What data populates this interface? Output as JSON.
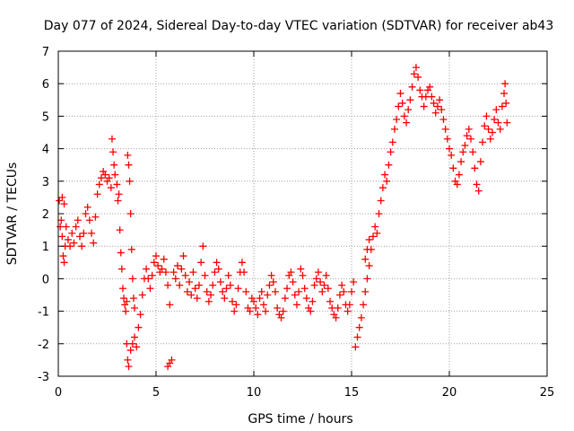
{
  "chart_data": {
    "type": "scatter",
    "title": "Day 077 of 2024, Sidereal Day-to-day VTEC variation (SDTVAR) for receiver ab43",
    "xlabel": "GPS time / hours",
    "ylabel": "SDTVAR / TECUs",
    "xlim": [
      0,
      25
    ],
    "ylim": [
      -3,
      7
    ],
    "xticks": [
      0,
      5,
      10,
      15,
      20,
      25
    ],
    "yticks": [
      -3,
      -2,
      -1,
      0,
      1,
      2,
      3,
      4,
      5,
      6,
      7
    ],
    "xtick_labels": [
      "0",
      "5",
      "10",
      "15",
      "20",
      "25"
    ],
    "ytick_labels": [
      "-3",
      "-2",
      "-1",
      "0",
      "1",
      "2",
      "3",
      "4",
      "5",
      "6",
      "7"
    ],
    "grid": true,
    "marker": "+",
    "series": [
      {
        "name": "SDTVAR",
        "color": "#ff0000",
        "points": [
          [
            0.05,
            2.4
          ],
          [
            0.1,
            1.6
          ],
          [
            0.15,
            1.8
          ],
          [
            0.2,
            1.3
          ],
          [
            0.25,
            0.7
          ],
          [
            0.3,
            0.5
          ],
          [
            0.35,
            1.0
          ],
          [
            0.4,
            1.6
          ],
          [
            0.3,
            2.3
          ],
          [
            0.2,
            2.5
          ],
          [
            0.5,
            1.2
          ],
          [
            0.6,
            1.0
          ],
          [
            0.7,
            1.4
          ],
          [
            0.8,
            1.1
          ],
          [
            0.9,
            1.6
          ],
          [
            1.0,
            1.8
          ],
          [
            1.1,
            1.3
          ],
          [
            1.2,
            1.0
          ],
          [
            1.3,
            1.4
          ],
          [
            1.4,
            2.0
          ],
          [
            1.5,
            2.2
          ],
          [
            1.6,
            1.8
          ],
          [
            1.7,
            1.4
          ],
          [
            1.8,
            1.1
          ],
          [
            1.9,
            1.9
          ],
          [
            2.0,
            2.6
          ],
          [
            2.1,
            2.9
          ],
          [
            2.2,
            3.1
          ],
          [
            2.3,
            3.3
          ],
          [
            2.4,
            3.2
          ],
          [
            2.5,
            3.0
          ],
          [
            2.6,
            3.1
          ],
          [
            2.7,
            2.8
          ],
          [
            2.75,
            4.3
          ],
          [
            2.8,
            3.9
          ],
          [
            2.85,
            3.5
          ],
          [
            2.9,
            3.2
          ],
          [
            3.0,
            2.9
          ],
          [
            3.05,
            2.4
          ],
          [
            3.1,
            2.6
          ],
          [
            3.15,
            1.5
          ],
          [
            3.2,
            0.8
          ],
          [
            3.25,
            0.3
          ],
          [
            3.3,
            -0.3
          ],
          [
            3.35,
            -0.6
          ],
          [
            3.4,
            -0.8
          ],
          [
            3.45,
            -1.0
          ],
          [
            3.5,
            -0.7
          ],
          [
            3.55,
            3.8
          ],
          [
            3.6,
            3.5
          ],
          [
            3.65,
            3.0
          ],
          [
            3.7,
            2.0
          ],
          [
            3.75,
            0.9
          ],
          [
            3.8,
            0.0
          ],
          [
            3.85,
            -0.6
          ],
          [
            3.9,
            -0.9
          ],
          [
            3.5,
            -2.0
          ],
          [
            3.55,
            -2.5
          ],
          [
            3.6,
            -2.7
          ],
          [
            3.7,
            -2.2
          ],
          [
            3.8,
            -2.0
          ],
          [
            3.9,
            -1.8
          ],
          [
            4.0,
            -2.1
          ],
          [
            4.1,
            -1.5
          ],
          [
            4.2,
            -1.1
          ],
          [
            4.3,
            -0.5
          ],
          [
            4.4,
            0.0
          ],
          [
            4.5,
            0.3
          ],
          [
            4.6,
            0.0
          ],
          [
            4.7,
            -0.3
          ],
          [
            4.8,
            0.1
          ],
          [
            4.9,
            0.5
          ],
          [
            5.0,
            0.7
          ],
          [
            5.1,
            0.4
          ],
          [
            5.2,
            0.2
          ],
          [
            5.3,
            0.3
          ],
          [
            5.4,
            0.6
          ],
          [
            5.5,
            0.2
          ],
          [
            5.6,
            -0.2
          ],
          [
            5.7,
            -0.8
          ],
          [
            5.6,
            -2.7
          ],
          [
            5.7,
            -2.6
          ],
          [
            5.8,
            -2.5
          ],
          [
            5.9,
            0.2
          ],
          [
            6.0,
            0.0
          ],
          [
            6.1,
            0.4
          ],
          [
            6.2,
            -0.2
          ],
          [
            6.3,
            0.3
          ],
          [
            6.4,
            0.7
          ],
          [
            6.5,
            0.1
          ],
          [
            6.6,
            -0.4
          ],
          [
            6.7,
            -0.1
          ],
          [
            6.8,
            -0.5
          ],
          [
            6.9,
            0.2
          ],
          [
            7.0,
            -0.3
          ],
          [
            7.1,
            -0.6
          ],
          [
            7.2,
            -0.2
          ],
          [
            7.3,
            0.5
          ],
          [
            7.4,
            1.0
          ],
          [
            7.5,
            0.1
          ],
          [
            7.6,
            -0.4
          ],
          [
            7.7,
            -0.7
          ],
          [
            7.8,
            -0.5
          ],
          [
            7.9,
            -0.2
          ],
          [
            8.0,
            0.2
          ],
          [
            8.1,
            0.5
          ],
          [
            8.2,
            0.3
          ],
          [
            8.3,
            -0.1
          ],
          [
            8.4,
            -0.4
          ],
          [
            8.5,
            -0.6
          ],
          [
            8.6,
            -0.3
          ],
          [
            8.7,
            0.1
          ],
          [
            8.8,
            -0.2
          ],
          [
            8.9,
            -0.7
          ],
          [
            9.0,
            -1.0
          ],
          [
            9.1,
            -0.8
          ],
          [
            9.2,
            -0.3
          ],
          [
            9.3,
            0.2
          ],
          [
            9.4,
            0.5
          ],
          [
            9.5,
            0.2
          ],
          [
            9.6,
            -0.4
          ],
          [
            9.7,
            -0.9
          ],
          [
            9.8,
            -1.0
          ],
          [
            9.9,
            -0.6
          ],
          [
            10.0,
            -0.7
          ],
          [
            10.1,
            -0.9
          ],
          [
            10.2,
            -1.1
          ],
          [
            10.3,
            -0.6
          ],
          [
            10.4,
            -0.4
          ],
          [
            10.5,
            -0.8
          ],
          [
            10.6,
            -1.0
          ],
          [
            10.7,
            -0.5
          ],
          [
            10.8,
            -0.2
          ],
          [
            10.9,
            0.1
          ],
          [
            11.0,
            -0.1
          ],
          [
            11.1,
            -0.4
          ],
          [
            11.2,
            -0.9
          ],
          [
            11.3,
            -1.1
          ],
          [
            11.4,
            -1.2
          ],
          [
            11.5,
            -1.0
          ],
          [
            11.6,
            -0.6
          ],
          [
            11.7,
            -0.3
          ],
          [
            11.8,
            0.1
          ],
          [
            11.9,
            0.2
          ],
          [
            12.0,
            -0.1
          ],
          [
            12.1,
            -0.5
          ],
          [
            12.2,
            -0.8
          ],
          [
            12.3,
            -0.4
          ],
          [
            12.4,
            0.3
          ],
          [
            12.5,
            0.1
          ],
          [
            12.6,
            -0.3
          ],
          [
            12.7,
            -0.6
          ],
          [
            12.8,
            -0.9
          ],
          [
            12.9,
            -1.0
          ],
          [
            13.0,
            -0.7
          ],
          [
            13.1,
            -0.2
          ],
          [
            13.2,
            0.0
          ],
          [
            13.3,
            0.2
          ],
          [
            13.4,
            -0.1
          ],
          [
            13.5,
            -0.4
          ],
          [
            13.6,
            -0.2
          ],
          [
            13.7,
            0.1
          ],
          [
            13.8,
            -0.3
          ],
          [
            13.9,
            -0.7
          ],
          [
            14.0,
            -0.9
          ],
          [
            14.1,
            -1.1
          ],
          [
            14.2,
            -1.2
          ],
          [
            14.3,
            -0.9
          ],
          [
            14.4,
            -0.5
          ],
          [
            14.5,
            -0.2
          ],
          [
            14.6,
            -0.4
          ],
          [
            14.7,
            -0.8
          ],
          [
            14.8,
            -1.0
          ],
          [
            14.9,
            -0.8
          ],
          [
            15.0,
            -0.4
          ],
          [
            15.1,
            -0.1
          ],
          [
            15.2,
            -2.1
          ],
          [
            15.3,
            -1.8
          ],
          [
            15.4,
            -1.5
          ],
          [
            15.5,
            -1.2
          ],
          [
            15.6,
            -0.8
          ],
          [
            15.7,
            -0.4
          ],
          [
            15.8,
            0.0
          ],
          [
            15.9,
            0.4
          ],
          [
            15.7,
            0.6
          ],
          [
            15.8,
            0.9
          ],
          [
            15.9,
            1.2
          ],
          [
            16.0,
            0.9
          ],
          [
            16.1,
            1.3
          ],
          [
            16.2,
            1.6
          ],
          [
            16.3,
            1.4
          ],
          [
            16.4,
            2.0
          ],
          [
            16.5,
            2.4
          ],
          [
            16.6,
            2.8
          ],
          [
            16.7,
            3.2
          ],
          [
            16.8,
            3.0
          ],
          [
            16.9,
            3.5
          ],
          [
            17.0,
            3.9
          ],
          [
            17.1,
            4.2
          ],
          [
            17.2,
            4.6
          ],
          [
            17.3,
            4.9
          ],
          [
            17.4,
            5.3
          ],
          [
            17.5,
            5.7
          ],
          [
            17.6,
            5.4
          ],
          [
            17.7,
            5.0
          ],
          [
            17.8,
            4.8
          ],
          [
            17.9,
            5.2
          ],
          [
            18.0,
            5.5
          ],
          [
            18.1,
            5.9
          ],
          [
            18.2,
            6.3
          ],
          [
            18.3,
            6.5
          ],
          [
            18.4,
            6.2
          ],
          [
            18.5,
            5.8
          ],
          [
            18.6,
            5.6
          ],
          [
            18.7,
            5.3
          ],
          [
            18.8,
            5.6
          ],
          [
            18.9,
            5.8
          ],
          [
            19.0,
            5.9
          ],
          [
            19.1,
            5.6
          ],
          [
            19.2,
            5.4
          ],
          [
            19.3,
            5.1
          ],
          [
            19.4,
            5.3
          ],
          [
            19.5,
            5.5
          ],
          [
            19.6,
            5.2
          ],
          [
            19.7,
            4.9
          ],
          [
            19.8,
            4.6
          ],
          [
            19.9,
            4.3
          ],
          [
            20.0,
            4.0
          ],
          [
            20.1,
            3.8
          ],
          [
            20.2,
            3.4
          ],
          [
            20.3,
            3.0
          ],
          [
            20.4,
            2.9
          ],
          [
            20.5,
            3.2
          ],
          [
            20.6,
            3.6
          ],
          [
            20.7,
            3.9
          ],
          [
            20.8,
            4.1
          ],
          [
            20.9,
            4.4
          ],
          [
            21.0,
            4.6
          ],
          [
            21.1,
            4.3
          ],
          [
            21.2,
            3.9
          ],
          [
            21.3,
            3.4
          ],
          [
            21.4,
            2.9
          ],
          [
            21.5,
            2.7
          ],
          [
            21.6,
            3.6
          ],
          [
            21.7,
            4.2
          ],
          [
            21.8,
            4.7
          ],
          [
            21.9,
            5.0
          ],
          [
            22.0,
            4.6
          ],
          [
            22.1,
            4.3
          ],
          [
            22.2,
            4.5
          ],
          [
            22.3,
            4.9
          ],
          [
            22.4,
            5.2
          ],
          [
            22.5,
            4.8
          ],
          [
            22.6,
            4.6
          ],
          [
            22.7,
            5.3
          ],
          [
            22.8,
            5.7
          ],
          [
            22.85,
            6.0
          ],
          [
            22.9,
            5.4
          ],
          [
            22.95,
            4.8
          ]
        ]
      }
    ]
  }
}
